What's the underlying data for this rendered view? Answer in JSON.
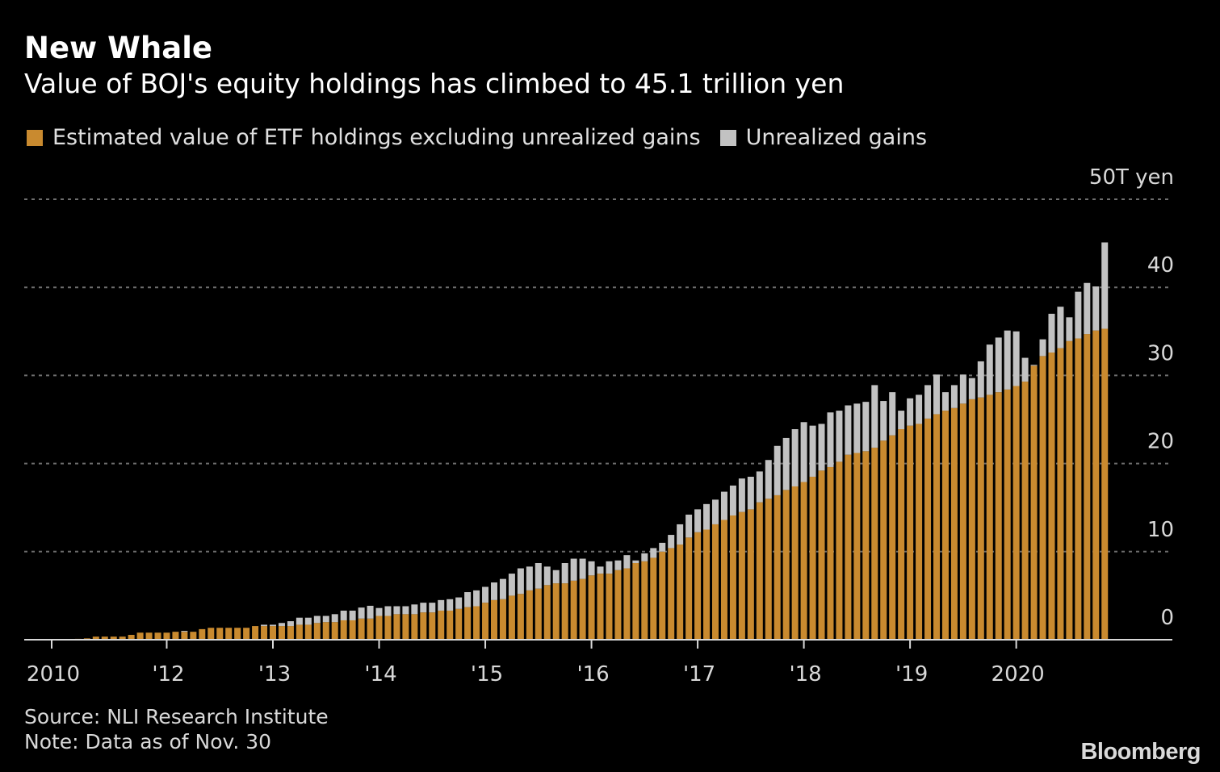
{
  "header": {
    "title": "New Whale",
    "subtitle": "Value of BOJ's equity holdings has climbed to 45.1 trillion yen"
  },
  "footer": {
    "source": "Source: NLI Research Institute",
    "note": "Note: Data as of Nov. 30",
    "logo": "Bloomberg"
  },
  "chart_data": {
    "type": "bar",
    "stacked": true,
    "title": "New Whale",
    "subtitle": "Value of BOJ's equity holdings has climbed to 45.1 trillion yen",
    "ylabel": "",
    "xlabel": "",
    "ylim": [
      0,
      50
    ],
    "y_unit_label": "50T yen",
    "y_ticks": [
      {
        "value": 50,
        "label": "50T yen"
      },
      {
        "value": 40,
        "label": "40"
      },
      {
        "value": 30,
        "label": "30"
      },
      {
        "value": 20,
        "label": "20"
      },
      {
        "value": 10,
        "label": "10"
      },
      {
        "value": 0,
        "label": "0"
      }
    ],
    "x_ticks": [
      {
        "month": "2010-12",
        "label": "2010"
      },
      {
        "month": "2012-01",
        "label": "'12"
      },
      {
        "month": "2013-01",
        "label": "'13"
      },
      {
        "month": "2014-01",
        "label": "'14"
      },
      {
        "month": "2015-01",
        "label": "'15"
      },
      {
        "month": "2016-01",
        "label": "'16"
      },
      {
        "month": "2017-01",
        "label": "'17"
      },
      {
        "month": "2018-01",
        "label": "'18"
      },
      {
        "month": "2019-01",
        "label": "'19"
      },
      {
        "month": "2020-01",
        "label": "2020"
      }
    ],
    "grid": true,
    "legend_placement": "top-left",
    "colors": {
      "base": "#c98a2f",
      "gains": "#c2c2c2",
      "grid": "#6e6e6e",
      "axis": "#d8d8d8"
    },
    "categories": [
      "2010-12",
      "2011-01",
      "2011-02",
      "2011-03",
      "2011-04",
      "2011-05",
      "2011-06",
      "2011-07",
      "2011-08",
      "2011-09",
      "2011-10",
      "2011-11",
      "2011-12",
      "2012-01",
      "2012-02",
      "2012-03",
      "2012-04",
      "2012-05",
      "2012-06",
      "2012-07",
      "2012-08",
      "2012-09",
      "2012-10",
      "2012-11",
      "2012-12",
      "2013-01",
      "2013-02",
      "2013-03",
      "2013-04",
      "2013-05",
      "2013-06",
      "2013-07",
      "2013-08",
      "2013-09",
      "2013-10",
      "2013-11",
      "2013-12",
      "2014-01",
      "2014-02",
      "2014-03",
      "2014-04",
      "2014-05",
      "2014-06",
      "2014-07",
      "2014-08",
      "2014-09",
      "2014-10",
      "2014-11",
      "2014-12",
      "2015-01",
      "2015-02",
      "2015-03",
      "2015-04",
      "2015-05",
      "2015-06",
      "2015-07",
      "2015-08",
      "2015-09",
      "2015-10",
      "2015-11",
      "2015-12",
      "2016-01",
      "2016-02",
      "2016-03",
      "2016-04",
      "2016-05",
      "2016-06",
      "2016-07",
      "2016-08",
      "2016-09",
      "2016-10",
      "2016-11",
      "2016-12",
      "2017-01",
      "2017-02",
      "2017-03",
      "2017-04",
      "2017-05",
      "2017-06",
      "2017-07",
      "2017-08",
      "2017-09",
      "2017-10",
      "2017-11",
      "2017-12",
      "2018-01",
      "2018-02",
      "2018-03",
      "2018-04",
      "2018-05",
      "2018-06",
      "2018-07",
      "2018-08",
      "2018-09",
      "2018-10",
      "2018-11",
      "2018-12",
      "2019-01",
      "2019-02",
      "2019-03",
      "2019-04",
      "2019-05",
      "2019-06",
      "2019-07",
      "2019-08",
      "2019-09",
      "2019-10",
      "2019-11",
      "2019-12",
      "2020-01",
      "2020-02",
      "2020-03",
      "2020-04",
      "2020-05",
      "2020-06",
      "2020-07",
      "2020-08",
      "2020-09",
      "2020-10",
      "2020-11"
    ],
    "series": [
      {
        "name": "Estimated value of ETF holdings excluding unrealized gains",
        "values": [
          0,
          0.03,
          0.05,
          0.1,
          0.15,
          0.35,
          0.35,
          0.35,
          0.35,
          0.55,
          0.8,
          0.8,
          0.8,
          0.8,
          0.9,
          0.9,
          0.9,
          1.2,
          1.35,
          1.35,
          1.35,
          1.35,
          1.35,
          1.55,
          1.55,
          1.55,
          1.55,
          1.55,
          1.7,
          1.7,
          1.9,
          2.0,
          2.0,
          2.2,
          2.2,
          2.4,
          2.4,
          2.7,
          2.7,
          2.9,
          2.9,
          2.9,
          3.1,
          3.1,
          3.3,
          3.3,
          3.5,
          3.7,
          3.8,
          4.2,
          4.5,
          4.6,
          5.0,
          5.2,
          5.6,
          5.8,
          6.2,
          6.4,
          6.4,
          6.7,
          6.9,
          7.3,
          7.5,
          7.5,
          7.9,
          8.1,
          8.7,
          8.9,
          9.3,
          10.0,
          10.4,
          10.8,
          11.6,
          12.2,
          12.5,
          13.1,
          13.6,
          14.1,
          14.5,
          14.8,
          15.6,
          16.0,
          16.4,
          17.0,
          17.4,
          17.9,
          18.5,
          19.2,
          19.6,
          20.2,
          21.0,
          21.2,
          21.4,
          21.8,
          22.6,
          23.2,
          23.9,
          24.3,
          24.5,
          25.1,
          25.6,
          26.0,
          26.3,
          26.8,
          27.3,
          27.5,
          27.8,
          28.1,
          28.4,
          28.8,
          29.3,
          31.1,
          32.2,
          32.6,
          33.1,
          33.9,
          34.2,
          34.7,
          35.1,
          35.3
        ]
      },
      {
        "name": "Unrealized gains",
        "values": [
          0,
          0,
          0,
          0,
          0,
          0,
          0,
          0,
          0,
          0,
          0,
          0,
          0,
          0,
          0,
          0.1,
          0,
          0,
          0,
          0,
          0,
          0,
          0,
          0,
          0.15,
          0.15,
          0.35,
          0.55,
          0.8,
          0.8,
          0.8,
          0.7,
          0.9,
          1.1,
          1.1,
          1.25,
          1.45,
          0.9,
          1.1,
          0.9,
          0.9,
          1.1,
          1.1,
          1.1,
          1.2,
          1.3,
          1.3,
          1.7,
          1.8,
          1.8,
          2.0,
          2.3,
          2.5,
          2.9,
          2.7,
          2.9,
          2.1,
          1.5,
          2.3,
          2.5,
          2.3,
          1.6,
          0.8,
          1.4,
          1.1,
          1.5,
          0.3,
          0.9,
          1.1,
          1.0,
          1.5,
          2.3,
          2.6,
          2.6,
          2.9,
          2.8,
          3.2,
          3.4,
          3.8,
          3.7,
          3.5,
          4.4,
          5.6,
          5.9,
          6.5,
          6.8,
          5.8,
          5.3,
          6.2,
          5.8,
          5.6,
          5.6,
          5.6,
          7.1,
          4.5,
          4.9,
          2.1,
          3.1,
          3.3,
          3.8,
          4.5,
          2.1,
          2.6,
          3.3,
          2.4,
          4.1,
          5.7,
          6.2,
          6.7,
          6.2,
          2.7,
          0.1,
          1.9,
          4.4,
          4.7,
          2.7,
          5.3,
          5.8,
          5.0,
          9.8
        ]
      }
    ]
  }
}
